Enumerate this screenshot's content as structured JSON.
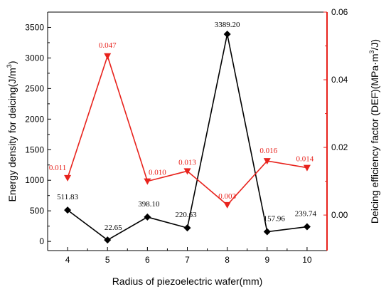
{
  "chart_data": {
    "type": "line",
    "xlabel": "Radius of piezoelectric wafer(mm)",
    "x": [
      4,
      5,
      6,
      7,
      8,
      9,
      10
    ],
    "xlim": [
      3.5,
      10.5
    ],
    "left_axis": {
      "label_prefix": "Energy density for deicing(J/m",
      "label_sup": "3",
      "label_suffix": ")",
      "ylim": [
        -150,
        3750
      ],
      "ticks": [
        "0",
        "500",
        "1000",
        "1500",
        "2000",
        "2500",
        "3000",
        "3500"
      ],
      "tick_values": [
        0,
        500,
        1000,
        1500,
        2000,
        2500,
        3000,
        3500
      ],
      "color": "#000000"
    },
    "right_axis": {
      "label_prefix": "Deicing efficiency factor (DEF)(MPa·m",
      "label_sup": "3",
      "label_suffix": "/J)",
      "ylim": [
        -0.0105,
        0.06
      ],
      "ticks": [
        "0.00",
        "0.02",
        "0.04",
        "0.06"
      ],
      "tick_values": [
        0.0,
        0.02,
        0.04,
        0.06
      ],
      "color": "#e8221c"
    },
    "series": [
      {
        "axis": "left",
        "marker": "diamond",
        "color": "#000000",
        "values": [
          511.83,
          22.65,
          398.1,
          220.63,
          3389.2,
          157.96,
          239.74
        ],
        "labels": [
          "511.83",
          "22.65",
          "398.10",
          "220.63",
          "3389.20",
          "157.96",
          "239.74"
        ]
      },
      {
        "axis": "right",
        "marker": "triangle-down",
        "color": "#e8221c",
        "values": [
          0.011,
          0.047,
          0.01,
          0.013,
          0.003,
          0.016,
          0.014
        ],
        "labels": [
          "0.011",
          "0.047",
          "0.010",
          "0.013",
          "0.003",
          "0.016",
          "0.014"
        ]
      }
    ]
  }
}
